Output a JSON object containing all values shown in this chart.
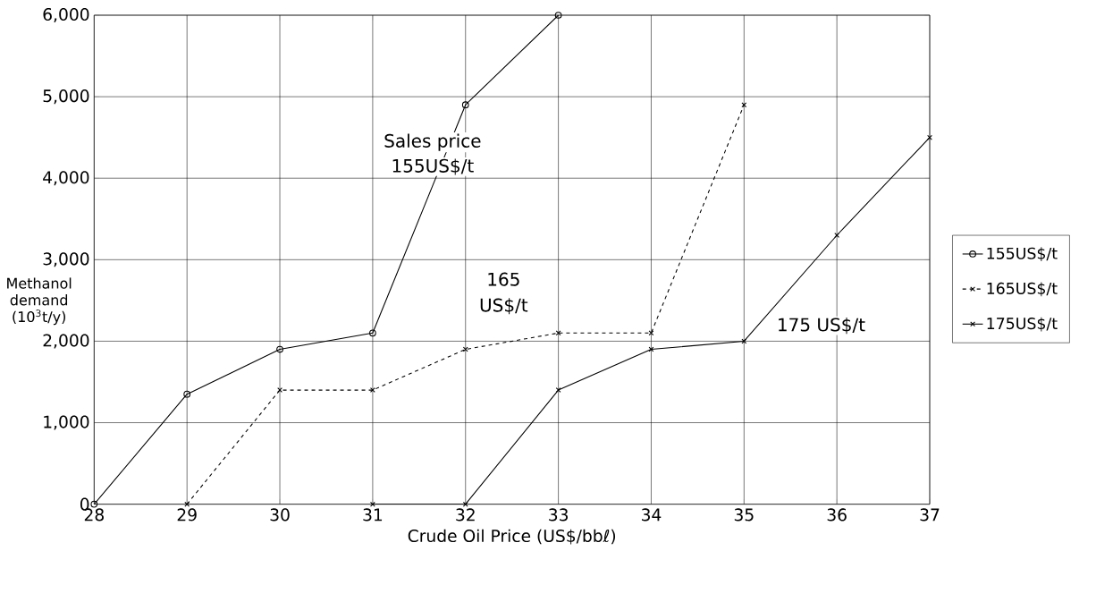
{
  "chart_data": {
    "type": "line",
    "xlabel": "Crude Oil Price (US$/bbℓ)",
    "ylabel": "Methanol demand (10$^{3}$t/y)",
    "x": [
      28,
      29,
      30,
      31,
      32,
      33,
      34,
      35,
      36,
      37
    ],
    "series": [
      {
        "name": "155US$/t",
        "color": "#000000",
        "marker": "circle",
        "line_style": "solid",
        "values": [
          0,
          1350,
          1900,
          2100,
          4900,
          6000,
          null,
          null,
          null,
          null
        ]
      },
      {
        "name": "165US$/t",
        "color": "#000000",
        "marker": "cross",
        "line_style": "dashed",
        "values": [
          null,
          0,
          1400,
          1400,
          1900,
          2100,
          2100,
          4900,
          null,
          null
        ]
      },
      {
        "name": "175US$/t",
        "color": "#000000",
        "marker": "cross",
        "line_style": "solid",
        "values": [
          null,
          null,
          null,
          0,
          0,
          1400,
          1900,
          2000,
          3300,
          4500
        ]
      }
    ],
    "xlim": [
      28,
      37
    ],
    "ylim": [
      0,
      6000
    ],
    "xticks": [
      28,
      29,
      30,
      31,
      32,
      33,
      34,
      35,
      36,
      37
    ],
    "yticks": [
      0,
      {
        "value": 1000,
        "label": "1,000"
      },
      {
        "value": 2000,
        "label": "2,000"
      },
      {
        "value": 3000,
        "label": "3,000"
      },
      {
        "value": 4000,
        "label": "4,000"
      },
      {
        "value": 5000,
        "label": "5,000"
      },
      {
        "value": 6000,
        "label": "6,000"
      }
    ],
    "annotations": [
      "Sales price",
      "155US$/t",
      "165",
      "US$/t",
      "175 US$/t"
    ],
    "grid": true,
    "legend": "right"
  }
}
